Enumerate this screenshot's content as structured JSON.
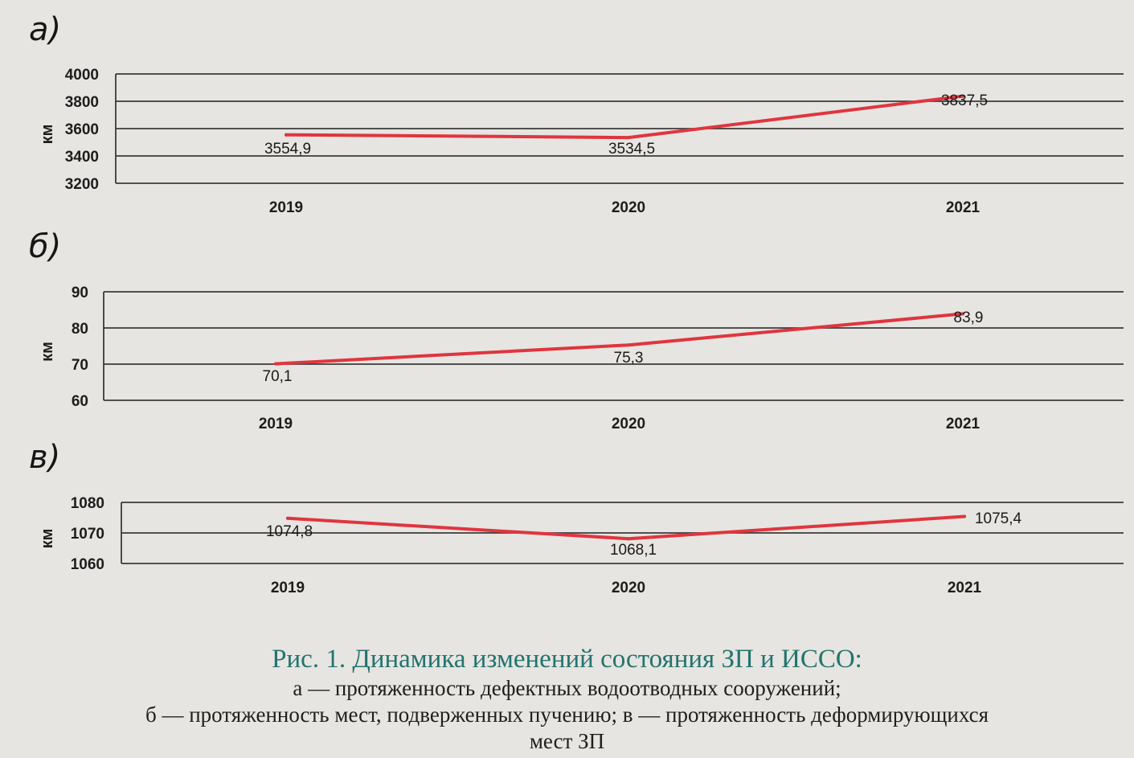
{
  "chart_data": [
    {
      "type": "line",
      "panel": "а)",
      "ylabel": "км",
      "ylim": [
        3200,
        4000
      ],
      "yticks": [
        "4000",
        "3800",
        "3600",
        "3400",
        "3200"
      ],
      "categories": [
        "2019",
        "2020",
        "2021"
      ],
      "values": [
        3554.9,
        3534.5,
        3837.5
      ],
      "value_labels": [
        "3554,9",
        "3534,5",
        "3837,5"
      ],
      "grid": true,
      "line_color": "#e0353f"
    },
    {
      "type": "line",
      "panel": "б)",
      "ylabel": "км",
      "ylim": [
        60,
        90
      ],
      "yticks": [
        "90",
        "80",
        "70",
        "60"
      ],
      "categories": [
        "2019",
        "2020",
        "2021"
      ],
      "values": [
        70.1,
        75.3,
        83.9
      ],
      "value_labels": [
        "70,1",
        "75,3",
        "83,9"
      ],
      "grid": true,
      "line_color": "#e0353f"
    },
    {
      "type": "line",
      "panel": "в)",
      "ylabel": "км",
      "ylim": [
        1060,
        1080
      ],
      "yticks": [
        "1080",
        "1070",
        "1060"
      ],
      "categories": [
        "2019",
        "2020",
        "2021"
      ],
      "values": [
        1074.8,
        1068.1,
        1075.4
      ],
      "value_labels": [
        "1074,8",
        "1068,1",
        "1075,4"
      ],
      "grid": true,
      "line_color": "#e0353f"
    }
  ],
  "caption": {
    "title": "Рис. 1. Динамика изменений состояния ЗП и ИССО:",
    "line1": "а — протяженность дефектных водоотводных сооружений;",
    "line2": "б — протяженность мест, подверженных пучению; в — протяженность деформирующихся",
    "line3": "мест ЗП"
  }
}
